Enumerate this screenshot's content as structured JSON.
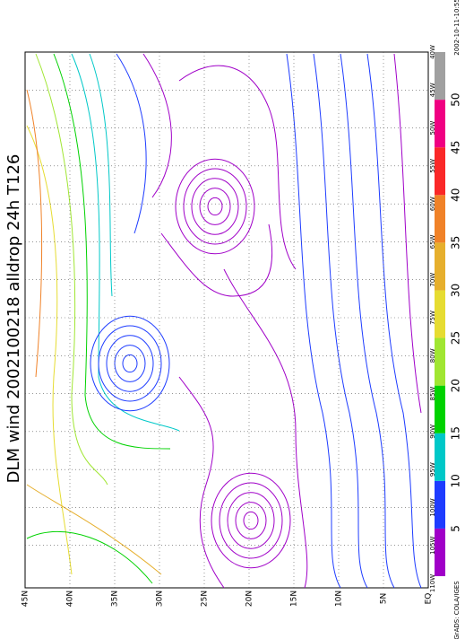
{
  "title": "DLM wind 2002100218 alldrop 24h T126",
  "timestamp": "2002-10-11-10:55",
  "credit": "GrADS: COLA/IGES",
  "lat_labels": [
    "45N",
    "40N",
    "35N",
    "30N",
    "25N",
    "20N",
    "15N",
    "10N",
    "5N",
    "EQ"
  ],
  "lon_labels": [
    "110W",
    "105W",
    "100W",
    "95W",
    "90W",
    "85W",
    "80W",
    "75W",
    "70W",
    "65W",
    "60W",
    "55W",
    "50W",
    "45W",
    "40W"
  ],
  "colorbar": {
    "labels": [
      5,
      10,
      15,
      20,
      25,
      30,
      35,
      40,
      45,
      50
    ],
    "colors": [
      "#a000c8",
      "#1e3cff",
      "#00c8c8",
      "#00d200",
      "#a0e632",
      "#e6dc32",
      "#e6af2d",
      "#f08228",
      "#fa2828",
      "#f00082",
      "#a0a0a0"
    ]
  }
}
